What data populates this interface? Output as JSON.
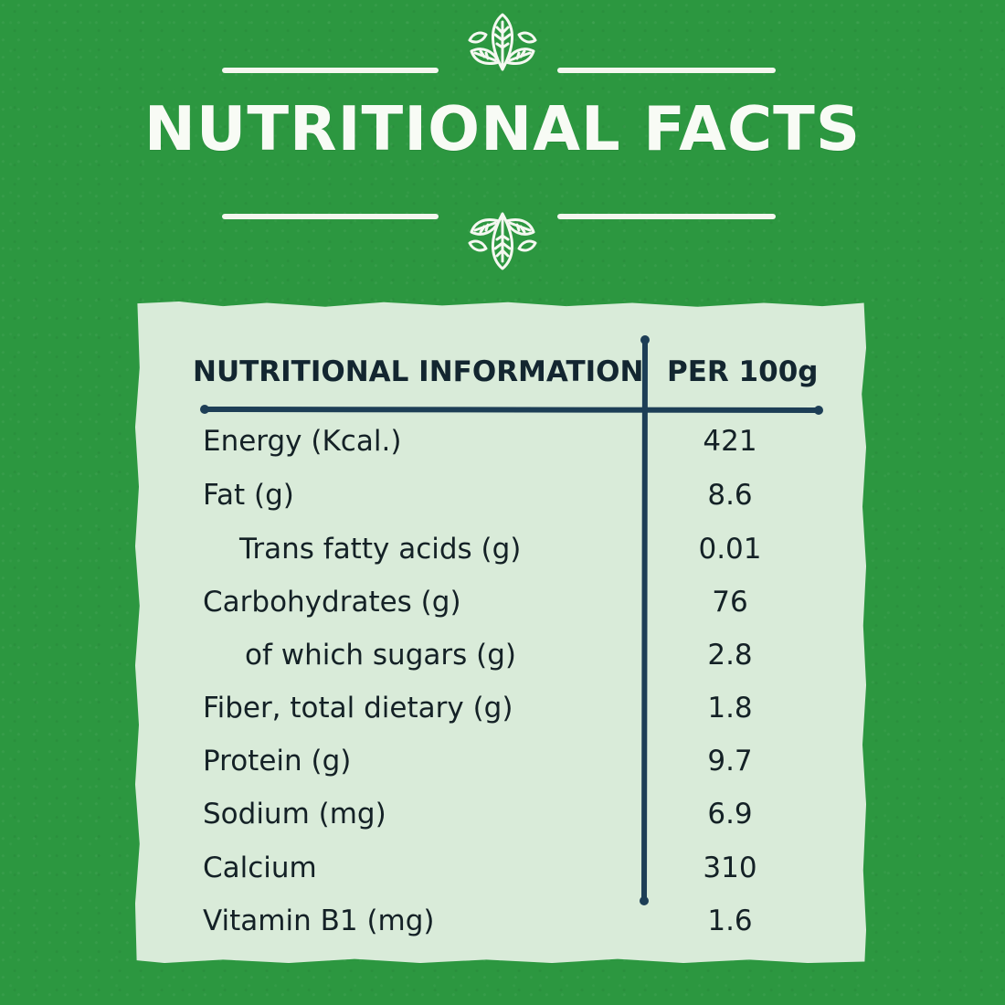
{
  "title": "NUTRITIONAL FACTS",
  "table": {
    "headers": {
      "label": "NUTRITIONAL INFORMATION",
      "value": "PER 100g"
    },
    "rows": [
      {
        "label": "Energy (Kcal.)",
        "value": "421"
      },
      {
        "label": "Fat (g)",
        "value": "8.6"
      },
      {
        "label": "Trans fatty acids (g)",
        "value": "0.01"
      },
      {
        "label": "Carbohydrates (g)",
        "value": "76"
      },
      {
        "label": "of which sugars (g)",
        "value": "2.8"
      },
      {
        "label": "Fiber, total dietary (g)",
        "value": "1.8"
      },
      {
        "label": "Protein (g)",
        "value": "9.7"
      },
      {
        "label": "Sodium (mg)",
        "value": "6.9"
      },
      {
        "label": "Calcium",
        "value": "310"
      },
      {
        "label": "Vitamin B1 (mg)",
        "value": "1.6"
      }
    ]
  },
  "colors": {
    "background": "#2c9740",
    "panel": "#d9ebd9",
    "text": "#142126",
    "divider": "#1d3e56",
    "title": "#f8fbf5"
  },
  "icons": {
    "top_decoration": "leaf-cluster-icon",
    "bottom_decoration": "leaf-cluster-icon"
  }
}
